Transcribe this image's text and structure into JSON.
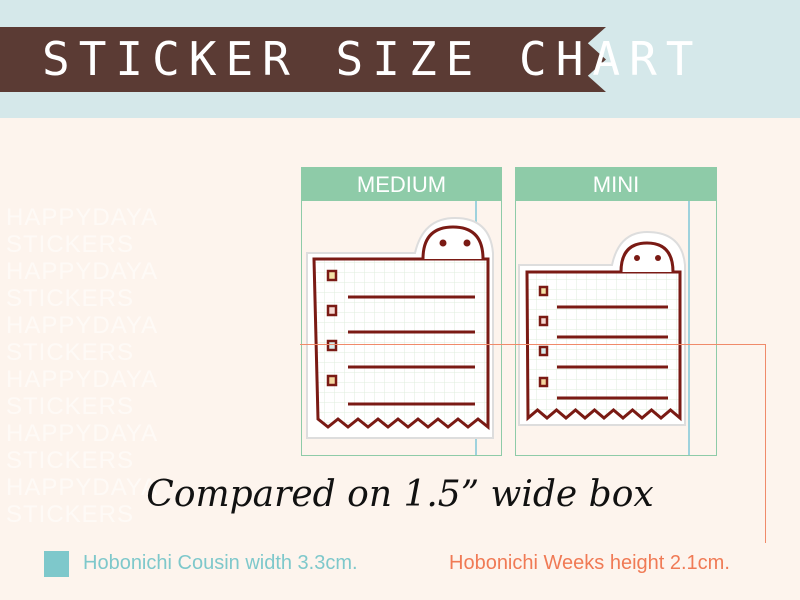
{
  "title": "STICKER SIZE CHART",
  "watermark": "HAPPYDAYA STICKERS HAPPYDAYA STICKERS HAPPYDAYA STICKERS",
  "sizes": [
    {
      "label": "MEDIUM"
    },
    {
      "label": "MINI"
    }
  ],
  "caption": "Compared on 1.5” wide box",
  "legend": {
    "cousin": "Hobonichi Cousin width 3.3cm.",
    "weeks": "Hobonichi Weeks height 2.1cm."
  },
  "colors": {
    "banner": "#5b3b34",
    "header": "#8ecba8",
    "cousin": "#7ec8cb",
    "weeks": "#f07a55",
    "sticker_outline": "#7a1a14"
  }
}
